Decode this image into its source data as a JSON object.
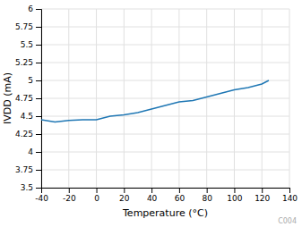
{
  "chart_data": {
    "type": "line",
    "xlabel": "Temperature (°C)",
    "ylabel": "IVDD (mA)",
    "annotations": [
      "C004"
    ],
    "x": [
      -40,
      -30,
      -20,
      -10,
      0,
      10,
      20,
      30,
      40,
      50,
      60,
      70,
      80,
      90,
      100,
      110,
      120,
      125
    ],
    "values": [
      4.45,
      4.42,
      4.44,
      4.45,
      4.45,
      4.5,
      4.52,
      4.55,
      4.6,
      4.65,
      4.7,
      4.72,
      4.77,
      4.82,
      4.87,
      4.9,
      4.95,
      5.0
    ],
    "xlim": [
      -40,
      140
    ],
    "ylim": [
      3.5,
      6
    ],
    "xticks": [
      -40,
      -20,
      0,
      20,
      40,
      60,
      80,
      100,
      120,
      140
    ],
    "yticks": [
      3.5,
      3.75,
      4,
      4.25,
      4.5,
      4.75,
      5,
      5.25,
      5.5,
      5.75,
      6
    ],
    "grid": true
  }
}
